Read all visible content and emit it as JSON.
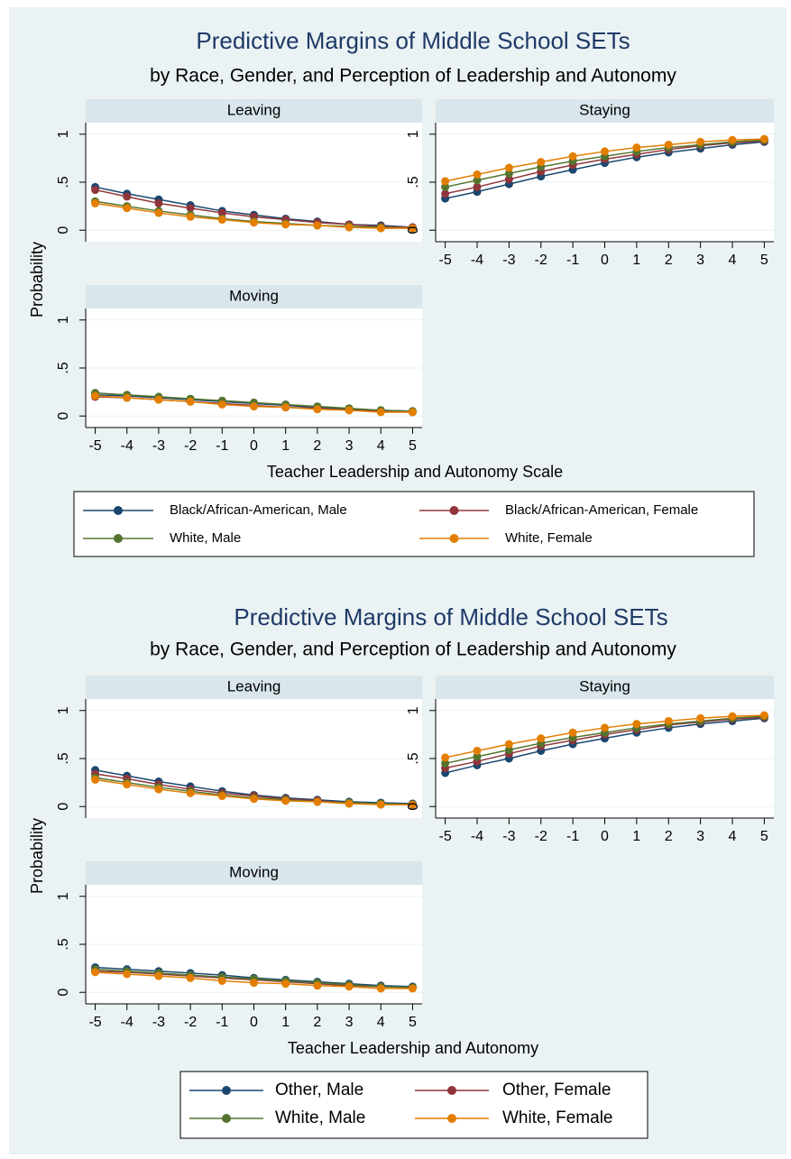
{
  "chart_data": [
    {
      "type": "line",
      "title": "Predictive Margins of Middle School SETs",
      "subtitle": "by Race, Gender, and Perception of Leadership and Autonomy",
      "x_label": "Teacher Leadership and Autonomy Scale",
      "y_label": "Probability",
      "x": [
        -5,
        -4,
        -3,
        -2,
        -1,
        0,
        1,
        2,
        3,
        4,
        5
      ],
      "xlim": [
        -5.3,
        5.3
      ],
      "xticks": [
        -5,
        -4,
        -3,
        -2,
        -1,
        0,
        1,
        2,
        3,
        4,
        5
      ],
      "ylim": [
        -0.12,
        1.12
      ],
      "yticks": [
        0,
        {
          "value": 0.5,
          "label": ".5"
        },
        1
      ],
      "grid": true,
      "legend": [
        {
          "name": "Black/African-American, Male",
          "color": "#1a476f"
        },
        {
          "name": "Black/African-American, Female",
          "color": "#90353b"
        },
        {
          "name": "White, Male",
          "color": "#55752f"
        },
        {
          "name": "White, Female",
          "color": "#e37e00"
        }
      ],
      "panels": [
        {
          "title": "Leaving",
          "series": [
            {
              "values": [
                0.45,
                0.38,
                0.32,
                0.26,
                0.2,
                0.16,
                0.12,
                0.09,
                0.06,
                0.05,
                0.03
              ]
            },
            {
              "values": [
                0.42,
                0.35,
                0.28,
                0.23,
                0.18,
                0.14,
                0.11,
                0.08,
                0.06,
                0.04,
                0.03
              ]
            },
            {
              "values": [
                0.3,
                0.25,
                0.2,
                0.16,
                0.12,
                0.09,
                0.07,
                0.05,
                0.04,
                0.03,
                0.02
              ]
            },
            {
              "values": [
                0.28,
                0.23,
                0.18,
                0.14,
                0.11,
                0.08,
                0.06,
                0.05,
                0.03,
                0.02,
                0.02
              ]
            }
          ]
        },
        {
          "title": "Staying",
          "series": [
            {
              "values": [
                0.33,
                0.4,
                0.48,
                0.56,
                0.63,
                0.7,
                0.76,
                0.81,
                0.85,
                0.89,
                0.92
              ]
            },
            {
              "values": [
                0.38,
                0.45,
                0.53,
                0.61,
                0.68,
                0.74,
                0.79,
                0.84,
                0.88,
                0.91,
                0.93
              ]
            },
            {
              "values": [
                0.45,
                0.52,
                0.59,
                0.66,
                0.72,
                0.77,
                0.82,
                0.86,
                0.89,
                0.92,
                0.94
              ]
            },
            {
              "values": [
                0.51,
                0.58,
                0.65,
                0.71,
                0.77,
                0.82,
                0.86,
                0.89,
                0.92,
                0.94,
                0.95
              ]
            }
          ]
        },
        {
          "title": "Moving",
          "series": [
            {
              "values": [
                0.22,
                0.21,
                0.19,
                0.17,
                0.15,
                0.13,
                0.11,
                0.09,
                0.07,
                0.06,
                0.05
              ]
            },
            {
              "values": [
                0.2,
                0.19,
                0.17,
                0.15,
                0.13,
                0.11,
                0.09,
                0.08,
                0.06,
                0.05,
                0.04
              ]
            },
            {
              "values": [
                0.24,
                0.22,
                0.2,
                0.18,
                0.16,
                0.14,
                0.12,
                0.1,
                0.08,
                0.06,
                0.05
              ]
            },
            {
              "values": [
                0.21,
                0.19,
                0.17,
                0.15,
                0.12,
                0.1,
                0.09,
                0.07,
                0.06,
                0.04,
                0.04
              ]
            }
          ]
        }
      ]
    },
    {
      "type": "line",
      "title": "Predictive Margins of Middle School SETs",
      "subtitle": "by Race, Gender, and Perception of Leadership and Autonomy",
      "x_label": "Teacher Leadership and Autonomy",
      "y_label": "Probability",
      "x": [
        -5,
        -4,
        -3,
        -2,
        -1,
        0,
        1,
        2,
        3,
        4,
        5
      ],
      "xlim": [
        -5.3,
        5.3
      ],
      "xticks": [
        -5,
        -4,
        -3,
        -2,
        -1,
        0,
        1,
        2,
        3,
        4,
        5
      ],
      "ylim": [
        -0.12,
        1.12
      ],
      "yticks": [
        0,
        {
          "value": 0.5,
          "label": ".5"
        },
        1
      ],
      "grid": true,
      "legend": [
        {
          "name": "Other, Male",
          "color": "#1a476f"
        },
        {
          "name": "Other, Female",
          "color": "#90353b"
        },
        {
          "name": "White, Male",
          "color": "#55752f"
        },
        {
          "name": "White, Female",
          "color": "#e37e00"
        }
      ],
      "panels": [
        {
          "title": "Leaving",
          "series": [
            {
              "values": [
                0.38,
                0.32,
                0.26,
                0.21,
                0.16,
                0.12,
                0.09,
                0.07,
                0.05,
                0.04,
                0.03
              ]
            },
            {
              "values": [
                0.34,
                0.29,
                0.23,
                0.18,
                0.14,
                0.11,
                0.08,
                0.06,
                0.04,
                0.03,
                0.02
              ]
            },
            {
              "values": [
                0.3,
                0.25,
                0.2,
                0.16,
                0.12,
                0.09,
                0.07,
                0.05,
                0.04,
                0.03,
                0.02
              ]
            },
            {
              "values": [
                0.28,
                0.23,
                0.18,
                0.14,
                0.11,
                0.08,
                0.06,
                0.05,
                0.03,
                0.02,
                0.02
              ]
            }
          ]
        },
        {
          "title": "Staying",
          "series": [
            {
              "values": [
                0.35,
                0.43,
                0.5,
                0.58,
                0.65,
                0.71,
                0.77,
                0.82,
                0.86,
                0.89,
                0.92
              ]
            },
            {
              "values": [
                0.4,
                0.47,
                0.55,
                0.63,
                0.69,
                0.75,
                0.8,
                0.85,
                0.88,
                0.91,
                0.93
              ]
            },
            {
              "values": [
                0.45,
                0.52,
                0.59,
                0.66,
                0.72,
                0.77,
                0.82,
                0.86,
                0.89,
                0.92,
                0.94
              ]
            },
            {
              "values": [
                0.51,
                0.58,
                0.65,
                0.71,
                0.77,
                0.82,
                0.86,
                0.89,
                0.92,
                0.94,
                0.95
              ]
            }
          ]
        },
        {
          "title": "Moving",
          "series": [
            {
              "values": [
                0.26,
                0.24,
                0.22,
                0.2,
                0.18,
                0.15,
                0.13,
                0.11,
                0.09,
                0.07,
                0.06
              ]
            },
            {
              "values": [
                0.22,
                0.21,
                0.19,
                0.17,
                0.15,
                0.13,
                0.11,
                0.09,
                0.07,
                0.06,
                0.05
              ]
            },
            {
              "values": [
                0.24,
                0.22,
                0.2,
                0.18,
                0.16,
                0.14,
                0.12,
                0.1,
                0.08,
                0.06,
                0.05
              ]
            },
            {
              "values": [
                0.21,
                0.19,
                0.17,
                0.15,
                0.12,
                0.1,
                0.09,
                0.07,
                0.06,
                0.04,
                0.04
              ]
            }
          ]
        }
      ]
    }
  ]
}
